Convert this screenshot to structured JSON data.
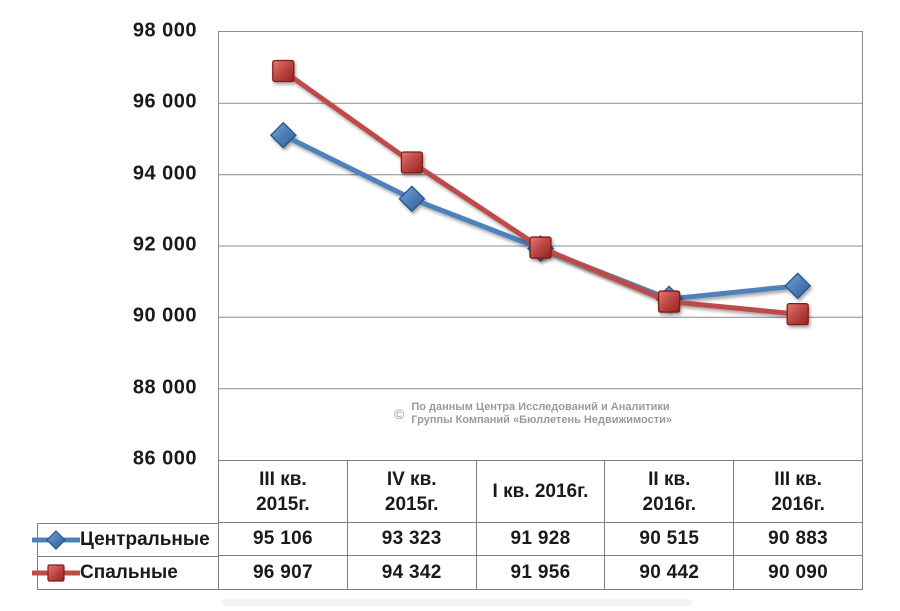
{
  "chart_data": {
    "type": "line",
    "title": "",
    "categories": [
      "III кв. 2015г.",
      "IV кв. 2015г.",
      "I кв. 2016г.",
      "II кв. 2016г.",
      "III кв. 2016г."
    ],
    "series": [
      {
        "name": "Центральные",
        "values": [
          95106,
          93323,
          91928,
          90515,
          90883
        ],
        "color": "#4F81BD",
        "marker": "diamond",
        "marker_fill_light": "#7FA9DC",
        "marker_fill_dark": "#2F5E95",
        "marker_edge": "#2A5184"
      },
      {
        "name": "Спальные",
        "values": [
          96907,
          94342,
          91956,
          90442,
          90090
        ],
        "color": "#BE4B48",
        "marker": "square",
        "marker_fill_light": "#E8796D",
        "marker_fill_dark": "#93221C",
        "marker_edge": "#7E1F1A"
      }
    ],
    "ylim": [
      86000,
      98000
    ],
    "ytick_step": 2000,
    "ytick_labels": [
      "98 000",
      "96 000",
      "94 000",
      "92 000",
      "90 000",
      "88 000",
      "86 000"
    ],
    "grid": "horizontal",
    "legend_position": "data-table-left",
    "xlabel": "",
    "ylabel": ""
  },
  "data_table": {
    "column_headers": [
      "III кв.\n2015г.",
      "IV кв.\n2015г.",
      "I кв. 2016г.",
      "II кв.\n2016г.",
      "III кв.\n2016г."
    ],
    "rows": [
      {
        "label": "Центральные",
        "values": [
          "95 106",
          "93 323",
          "91 928",
          "90 515",
          "90 883"
        ]
      },
      {
        "label": "Спальные",
        "values": [
          "96 907",
          "94 342",
          "91 956",
          "90 442",
          "90 090"
        ]
      }
    ]
  },
  "watermark": {
    "symbol": "©",
    "line1": "По данным Центра Исследований и Аналитики",
    "line2": "Группы Компаний «Бюллетень Недвижимости»"
  },
  "colors": {
    "background": "#FFFFFF",
    "text": "#1A1A1A",
    "gridline": "#8C8C8C",
    "plot_border": "#8C8C8C",
    "table_border": "#7F7F7F",
    "watermark": "#9B9B9B",
    "series_central": "#4F81BD",
    "series_sleeping": "#BE4B48"
  }
}
